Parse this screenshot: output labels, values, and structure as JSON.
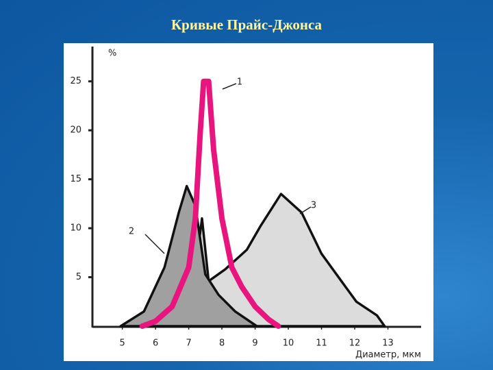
{
  "chart_data": {
    "type": "line",
    "title": "Кривые Прайс-Джонса",
    "y_label": "%",
    "x_label": "Диаметр, мкм",
    "xlim": [
      4.1,
      14
    ],
    "ylim": [
      0,
      27.5
    ],
    "xticks": [
      5,
      6,
      7,
      8,
      9,
      10,
      11,
      12,
      13
    ],
    "yticks": [
      5,
      10,
      15,
      20,
      25
    ],
    "grid": false,
    "series": [
      {
        "name": "3",
        "color": "#111111",
        "fill": "#dcdcdc",
        "x": [
          6.18,
          6.8,
          7.1,
          7.4,
          7.6,
          8.1,
          8.75,
          9.16,
          9.78,
          10.4,
          11.0,
          11.6,
          12.05,
          12.67,
          12.9
        ],
        "values": [
          0,
          1.1,
          3.2,
          11,
          4.6,
          5.8,
          7.8,
          10.2,
          13.5,
          11.6,
          7.4,
          4.6,
          2.5,
          1.1,
          0
        ]
      },
      {
        "name": "2",
        "color": "#111111",
        "fill": "#a0a0a0",
        "x": [
          4.95,
          5.65,
          6.27,
          6.7,
          6.94,
          7.2,
          7.5,
          7.9,
          8.4,
          9.05
        ],
        "values": [
          0,
          1.5,
          6,
          11.6,
          14.3,
          12.3,
          5.3,
          3.2,
          1.5,
          0
        ]
      },
      {
        "name": "1",
        "color": "#e8157e",
        "fill": "none",
        "x": [
          5.6,
          6,
          6.5,
          7,
          7.2,
          7.35,
          7.45,
          7.6,
          7.75,
          8,
          8.3,
          8.6,
          9,
          9.4,
          9.7
        ],
        "values": [
          0,
          0.5,
          2,
          6,
          11,
          20,
          25,
          25,
          18,
          11,
          6,
          4,
          2,
          0.7,
          0
        ]
      }
    ]
  }
}
